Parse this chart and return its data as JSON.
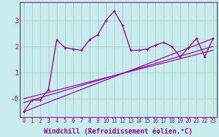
{
  "xlabel": "Windchill (Refroidissement éolien,°C)",
  "background_color": "#c8ecec",
  "grid_color": "#b0b0b0",
  "line_color": "#990099",
  "xlim": [
    -0.5,
    23.5
  ],
  "ylim": [
    -0.7,
    3.7
  ],
  "yticks": [
    0,
    1,
    2,
    3
  ],
  "ytick_labels": [
    "-0",
    "1",
    "2",
    "3"
  ],
  "xticks": [
    0,
    1,
    2,
    3,
    4,
    5,
    6,
    7,
    8,
    9,
    10,
    11,
    12,
    13,
    14,
    15,
    16,
    17,
    18,
    19,
    20,
    21,
    22,
    23
  ],
  "series1_x": [
    0,
    1,
    2,
    3,
    4,
    5,
    6,
    7,
    8,
    9,
    10,
    11,
    12,
    13,
    14,
    15,
    16,
    17,
    18,
    19,
    20,
    21,
    22,
    23
  ],
  "series1_y": [
    -0.5,
    -0.05,
    -0.05,
    0.35,
    2.25,
    1.95,
    1.9,
    1.85,
    2.25,
    2.45,
    3.0,
    3.35,
    2.8,
    1.85,
    1.85,
    1.9,
    2.05,
    2.15,
    2.0,
    1.6,
    1.95,
    2.3,
    1.6,
    2.3
  ],
  "series2_x": [
    0,
    23
  ],
  "series2_y": [
    -0.5,
    2.3
  ],
  "series3_x": [
    0,
    23
  ],
  "series3_y": [
    -0.15,
    2.0
  ],
  "series4_x": [
    0,
    23
  ],
  "series4_y": [
    0.0,
    1.85
  ],
  "fontsize_xlabel": 7,
  "fontsize_ytick": 7,
  "fontsize_xtick": 5.5
}
